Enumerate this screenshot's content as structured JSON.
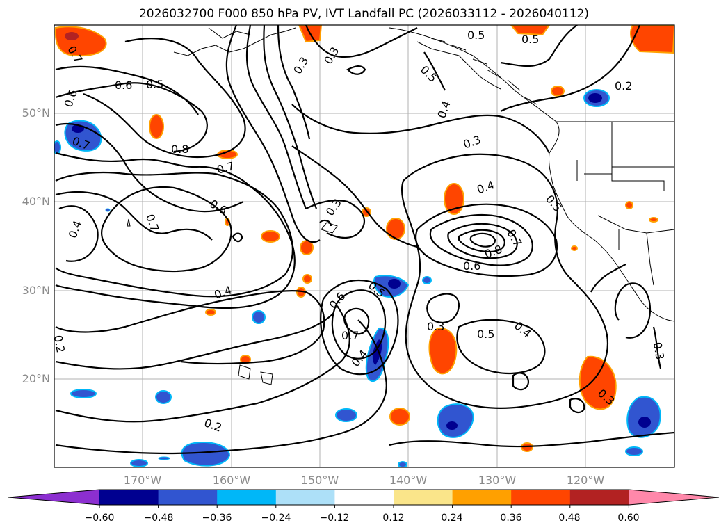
{
  "title": "2026032700 F000 850 hPa PV, IVT Landfall PC (2026033112 - 2026040112)",
  "lat_labels": [
    "50°N",
    "40°N",
    "30°N",
    "20°N"
  ],
  "lon_labels": [
    "170°W",
    "160°W",
    "150°W",
    "140°W",
    "130°W",
    "120°W"
  ],
  "colorbar": {
    "ticks": [
      "−0.60",
      "−0.48",
      "−0.36",
      "−0.24",
      "−0.12",
      "0.12",
      "0.24",
      "0.36",
      "0.48",
      "0.60"
    ],
    "colors": [
      "#8c2fd0",
      "#000090",
      "#3155d0",
      "#00b7f8",
      "#ade0f8",
      "#ffffff",
      "#fae58a",
      "#ffa000",
      "#ff4500",
      "#b22222",
      "#ff88aa"
    ]
  },
  "chart_data": {
    "type": "map",
    "title": "2026032700 F000 850 hPa PV, IVT Landfall PC (2026033112 - 2026040112)",
    "field_contoured": "850 hPa PV",
    "field_shaded": "IVT Landfall PC",
    "lat_range": [
      10,
      60
    ],
    "lon_range": [
      -180,
      -110
    ],
    "contour_labels": [
      "0.5",
      "0.5",
      "0.3",
      "0.3",
      "0.6",
      "0.5",
      "0.6",
      "0.2",
      "0.5",
      "0.4",
      "0.7",
      "0.7",
      "0.8",
      "0.7",
      "0.6",
      "0.3",
      "0.4",
      "0.3",
      "0.5",
      "0.4",
      "0.7",
      "0.8",
      "0.6",
      "0.7",
      "0.6",
      "0.5",
      "0.4",
      "0.3",
      "0.5",
      "0.4",
      "0.7",
      "0.4",
      "0.3",
      "0.2",
      "0.3",
      "0.2"
    ],
    "colorbar_levels": [
      -0.6,
      -0.48,
      -0.36,
      -0.24,
      -0.12,
      0.12,
      0.24,
      0.36,
      0.48,
      0.6
    ]
  }
}
